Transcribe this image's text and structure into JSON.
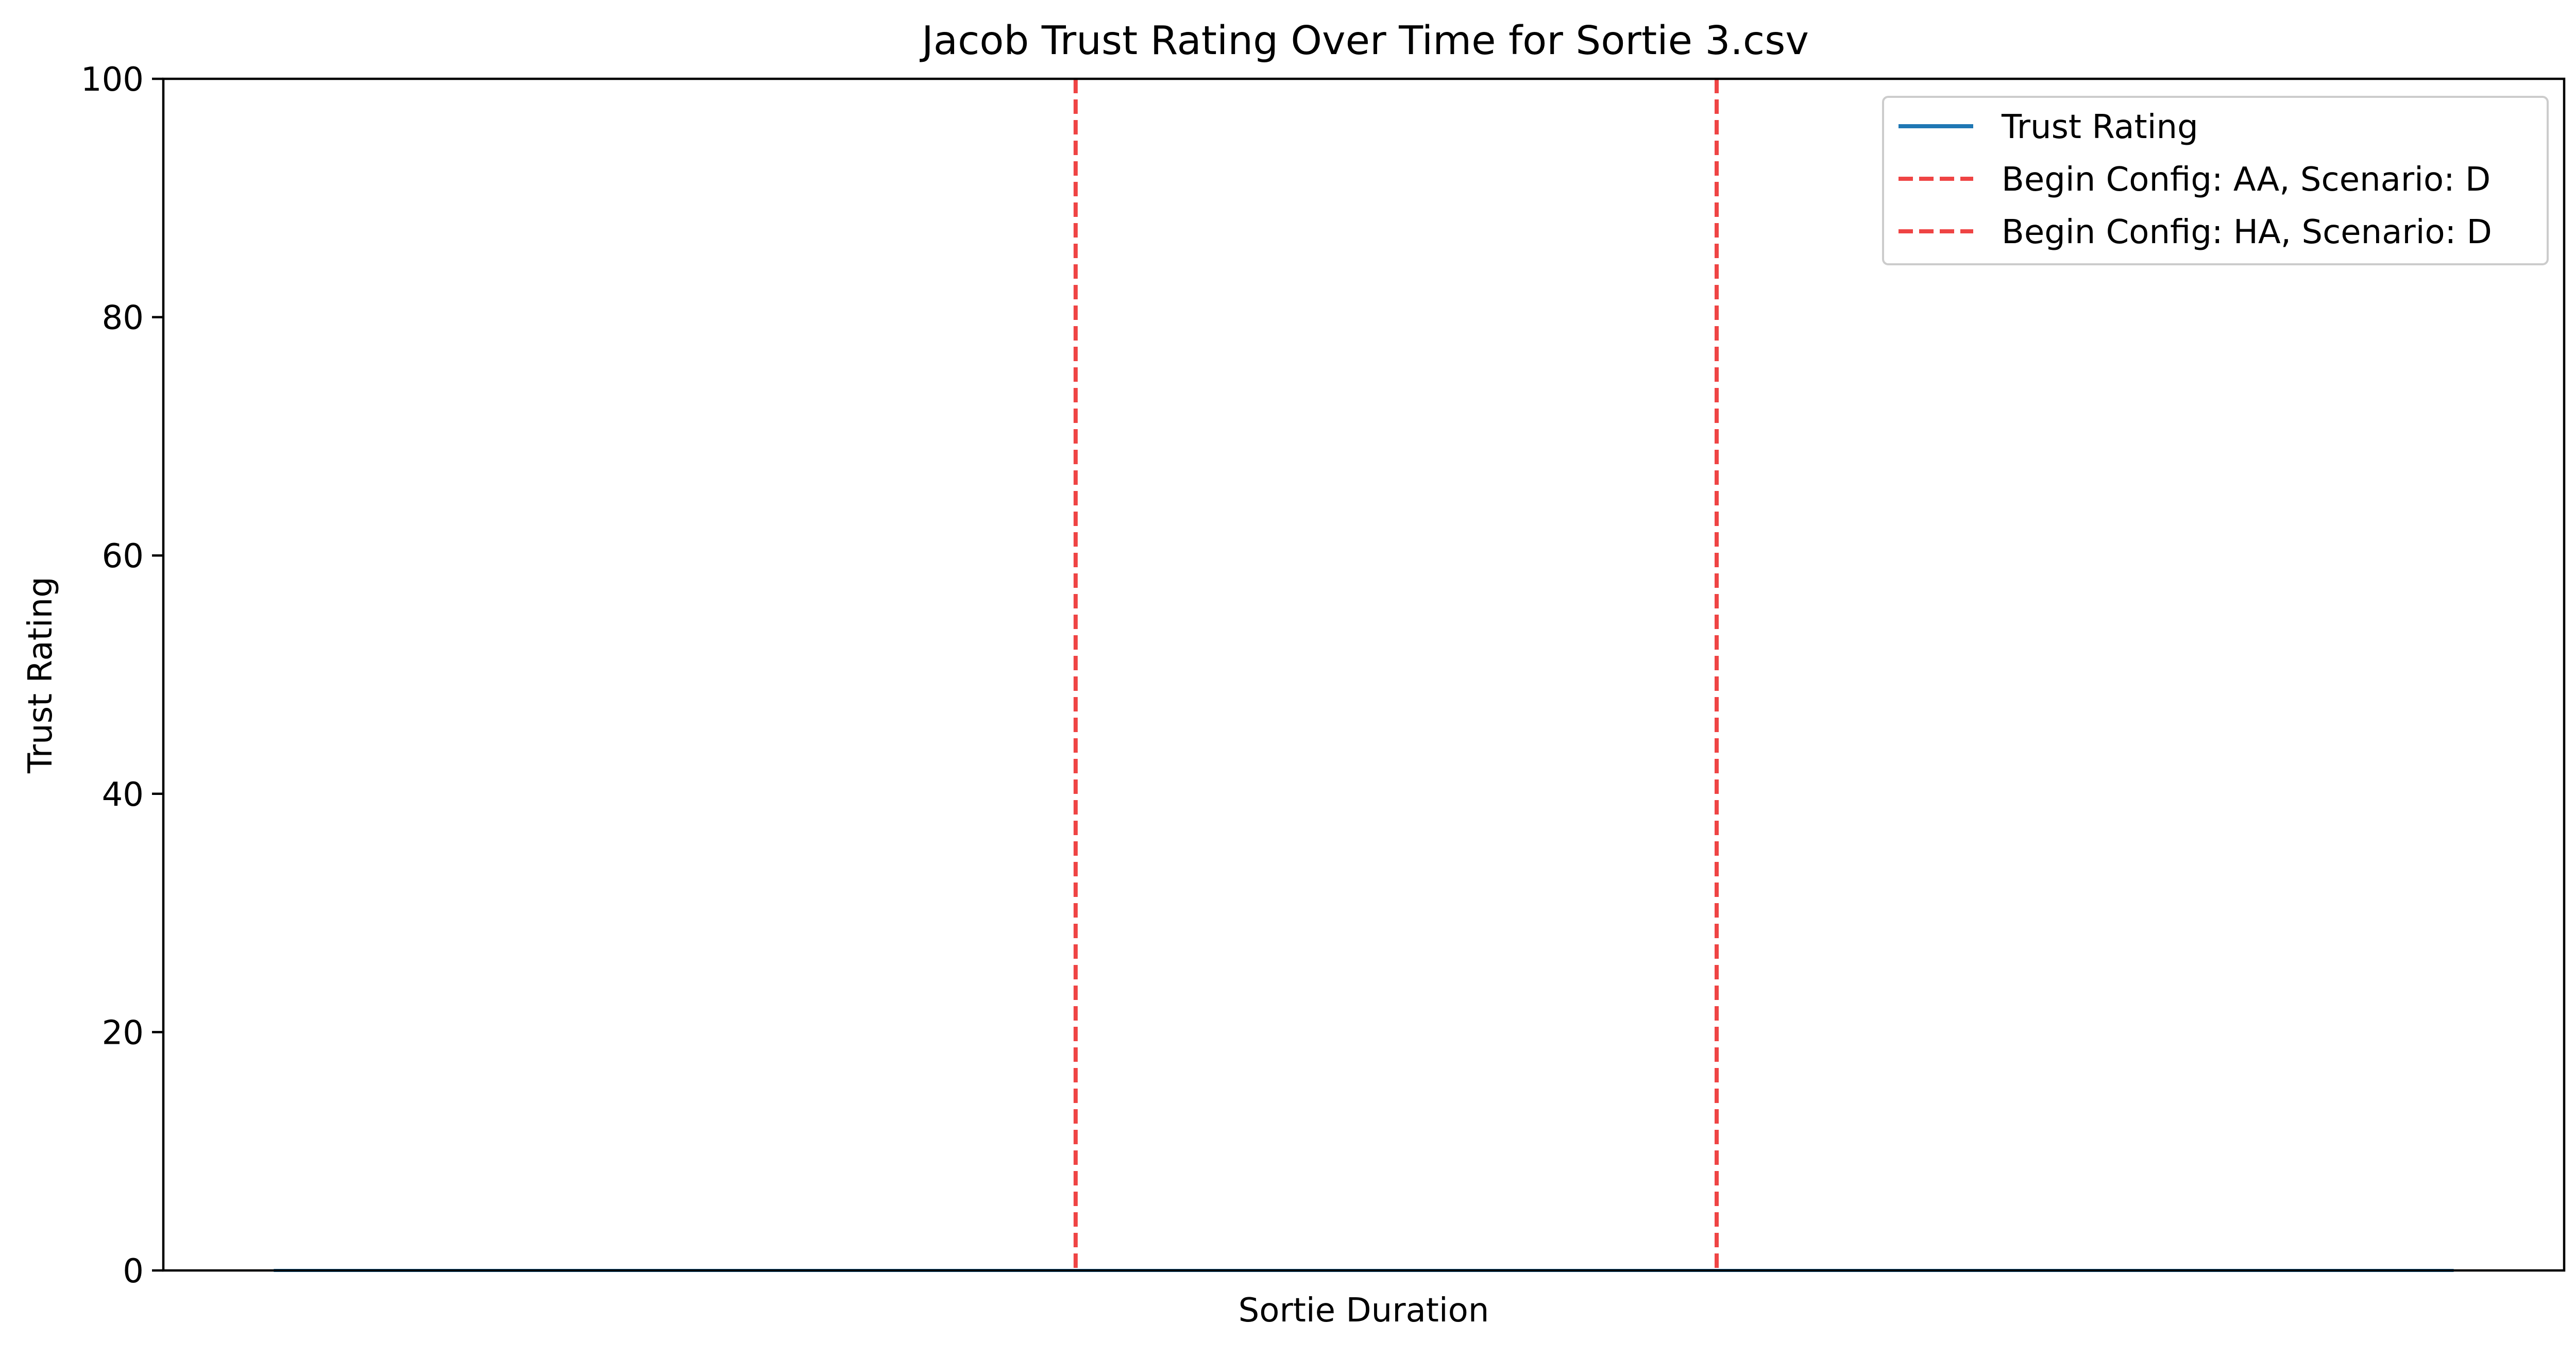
{
  "chart_data": {
    "type": "line",
    "title": "Jacob Trust Rating Over Time for Sortie 3.csv",
    "xlabel": "Sortie Duration",
    "ylabel": "Trust Rating",
    "xlim": [
      0,
      1
    ],
    "ylim": [
      0,
      100
    ],
    "yticks": [
      0,
      20,
      40,
      60,
      80,
      100
    ],
    "xticks_shown": false,
    "grid": false,
    "legend_position": "top-right",
    "series": [
      {
        "name": "Trust Rating",
        "color": "#1f77b4",
        "style": "solid",
        "x": [
          0,
          1
        ],
        "y": [
          0,
          0
        ]
      }
    ],
    "vlines": [
      {
        "name": "Begin Config: AA, Scenario: D",
        "x": 0.38,
        "color": "#ef4444",
        "style": "dashed"
      },
      {
        "name": "Begin Config: HA, Scenario: D",
        "x": 0.647,
        "color": "#ef4444",
        "style": "dashed"
      }
    ]
  }
}
